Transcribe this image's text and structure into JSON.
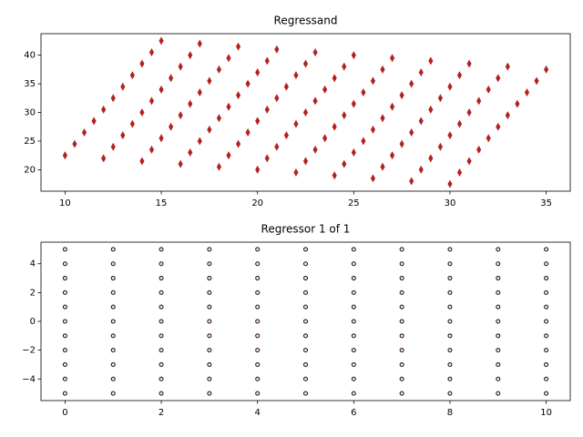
{
  "chart_data": [
    {
      "type": "scatter",
      "title": "Regressand",
      "marker": "diamond",
      "color": "#b22222",
      "edgecolor": "#b22222",
      "xlim": [
        8.75,
        36.25
      ],
      "ylim": [
        16.25,
        43.75
      ],
      "xticks": [
        10,
        15,
        20,
        25,
        30,
        35
      ],
      "yticks": [
        20,
        25,
        30,
        35,
        40
      ],
      "x": [
        10,
        10.5,
        11,
        11.5,
        12,
        12.5,
        13,
        13.5,
        14,
        14.5,
        15,
        12,
        12.5,
        13,
        13.5,
        14,
        14.5,
        15,
        15.5,
        16,
        16.5,
        17,
        14,
        14.5,
        15,
        15.5,
        16,
        16.5,
        17,
        17.5,
        18,
        18.5,
        19,
        16,
        16.5,
        17,
        17.5,
        18,
        18.5,
        19,
        19.5,
        20,
        20.5,
        21,
        18,
        18.5,
        19,
        19.5,
        20,
        20.5,
        21,
        21.5,
        22,
        22.5,
        23,
        20,
        20.5,
        21,
        21.5,
        22,
        22.5,
        23,
        23.5,
        24,
        24.5,
        25,
        22,
        22.5,
        23,
        23.5,
        24,
        24.5,
        25,
        25.5,
        26,
        26.5,
        27,
        24,
        24.5,
        25,
        25.5,
        26,
        26.5,
        27,
        27.5,
        28,
        28.5,
        29,
        26,
        26.5,
        27,
        27.5,
        28,
        28.5,
        29,
        29.5,
        30,
        30.5,
        31,
        28,
        28.5,
        29,
        29.5,
        30,
        30.5,
        31,
        31.5,
        32,
        32.5,
        33,
        30,
        30.5,
        31,
        31.5,
        32,
        32.5,
        33,
        33.5,
        34,
        34.5,
        35
      ],
      "values": [
        22.5,
        24.5,
        26.5,
        28.5,
        30.5,
        32.5,
        34.5,
        36.5,
        38.5,
        40.5,
        42.5,
        22,
        24,
        26,
        28,
        30,
        32,
        34,
        36,
        38,
        40,
        42,
        21.5,
        23.5,
        25.5,
        27.5,
        29.5,
        31.5,
        33.5,
        35.5,
        37.5,
        39.5,
        41.5,
        21,
        23,
        25,
        27,
        29,
        31,
        33,
        35,
        37,
        39,
        41,
        20.5,
        22.5,
        24.5,
        26.5,
        28.5,
        30.5,
        32.5,
        34.5,
        36.5,
        38.5,
        40.5,
        20,
        22,
        24,
        26,
        28,
        30,
        32,
        34,
        36,
        38,
        40,
        19.5,
        21.5,
        23.5,
        25.5,
        27.5,
        29.5,
        31.5,
        33.5,
        35.5,
        37.5,
        39.5,
        19,
        21,
        23,
        25,
        27,
        29,
        31,
        33,
        35,
        37,
        39,
        18.5,
        20.5,
        22.5,
        24.5,
        26.5,
        28.5,
        30.5,
        32.5,
        34.5,
        36.5,
        38.5,
        18,
        20,
        22,
        24,
        26,
        28,
        30,
        32,
        34,
        36,
        38,
        17.5,
        19.5,
        21.5,
        23.5,
        25.5,
        27.5,
        29.5,
        31.5,
        33.5,
        35.5,
        37.5
      ]
    },
    {
      "type": "scatter",
      "title": "Regressor 1 of 1",
      "marker": "circle",
      "color": "#fbe8ee",
      "edgecolor": "#1a0a10",
      "xlim": [
        -0.5,
        10.5
      ],
      "ylim": [
        -5.5,
        5.5
      ],
      "xticks": [
        0,
        2,
        4,
        6,
        8,
        10
      ],
      "yticks": [
        {
          "value": -4,
          "label": "−4"
        },
        {
          "value": -2,
          "label": "−2"
        },
        0,
        2,
        4
      ],
      "x": [
        0,
        0,
        0,
        0,
        0,
        0,
        0,
        0,
        0,
        0,
        0,
        1,
        1,
        1,
        1,
        1,
        1,
        1,
        1,
        1,
        1,
        1,
        2,
        2,
        2,
        2,
        2,
        2,
        2,
        2,
        2,
        2,
        2,
        3,
        3,
        3,
        3,
        3,
        3,
        3,
        3,
        3,
        3,
        3,
        4,
        4,
        4,
        4,
        4,
        4,
        4,
        4,
        4,
        4,
        4,
        5,
        5,
        5,
        5,
        5,
        5,
        5,
        5,
        5,
        5,
        5,
        6,
        6,
        6,
        6,
        6,
        6,
        6,
        6,
        6,
        6,
        6,
        7,
        7,
        7,
        7,
        7,
        7,
        7,
        7,
        7,
        7,
        7,
        8,
        8,
        8,
        8,
        8,
        8,
        8,
        8,
        8,
        8,
        8,
        9,
        9,
        9,
        9,
        9,
        9,
        9,
        9,
        9,
        9,
        9,
        10,
        10,
        10,
        10,
        10,
        10,
        10,
        10,
        10,
        10,
        10
      ],
      "values": [
        -5,
        -4,
        -3,
        -2,
        -1,
        0,
        1,
        2,
        3,
        4,
        5,
        -5,
        -4,
        -3,
        -2,
        -1,
        0,
        1,
        2,
        3,
        4,
        5,
        -5,
        -4,
        -3,
        -2,
        -1,
        0,
        1,
        2,
        3,
        4,
        5,
        -5,
        -4,
        -3,
        -2,
        -1,
        0,
        1,
        2,
        3,
        4,
        5,
        -5,
        -4,
        -3,
        -2,
        -1,
        0,
        1,
        2,
        3,
        4,
        5,
        -5,
        -4,
        -3,
        -2,
        -1,
        0,
        1,
        2,
        3,
        4,
        5,
        -5,
        -4,
        -3,
        -2,
        -1,
        0,
        1,
        2,
        3,
        4,
        5,
        -5,
        -4,
        -3,
        -2,
        -1,
        0,
        1,
        2,
        3,
        4,
        5,
        -5,
        -4,
        -3,
        -2,
        -1,
        0,
        1,
        2,
        3,
        4,
        5,
        -5,
        -4,
        -3,
        -2,
        -1,
        0,
        1,
        2,
        3,
        4,
        5,
        -5,
        -4,
        -3,
        -2,
        -1,
        0,
        1,
        2,
        3,
        4,
        5
      ]
    }
  ]
}
